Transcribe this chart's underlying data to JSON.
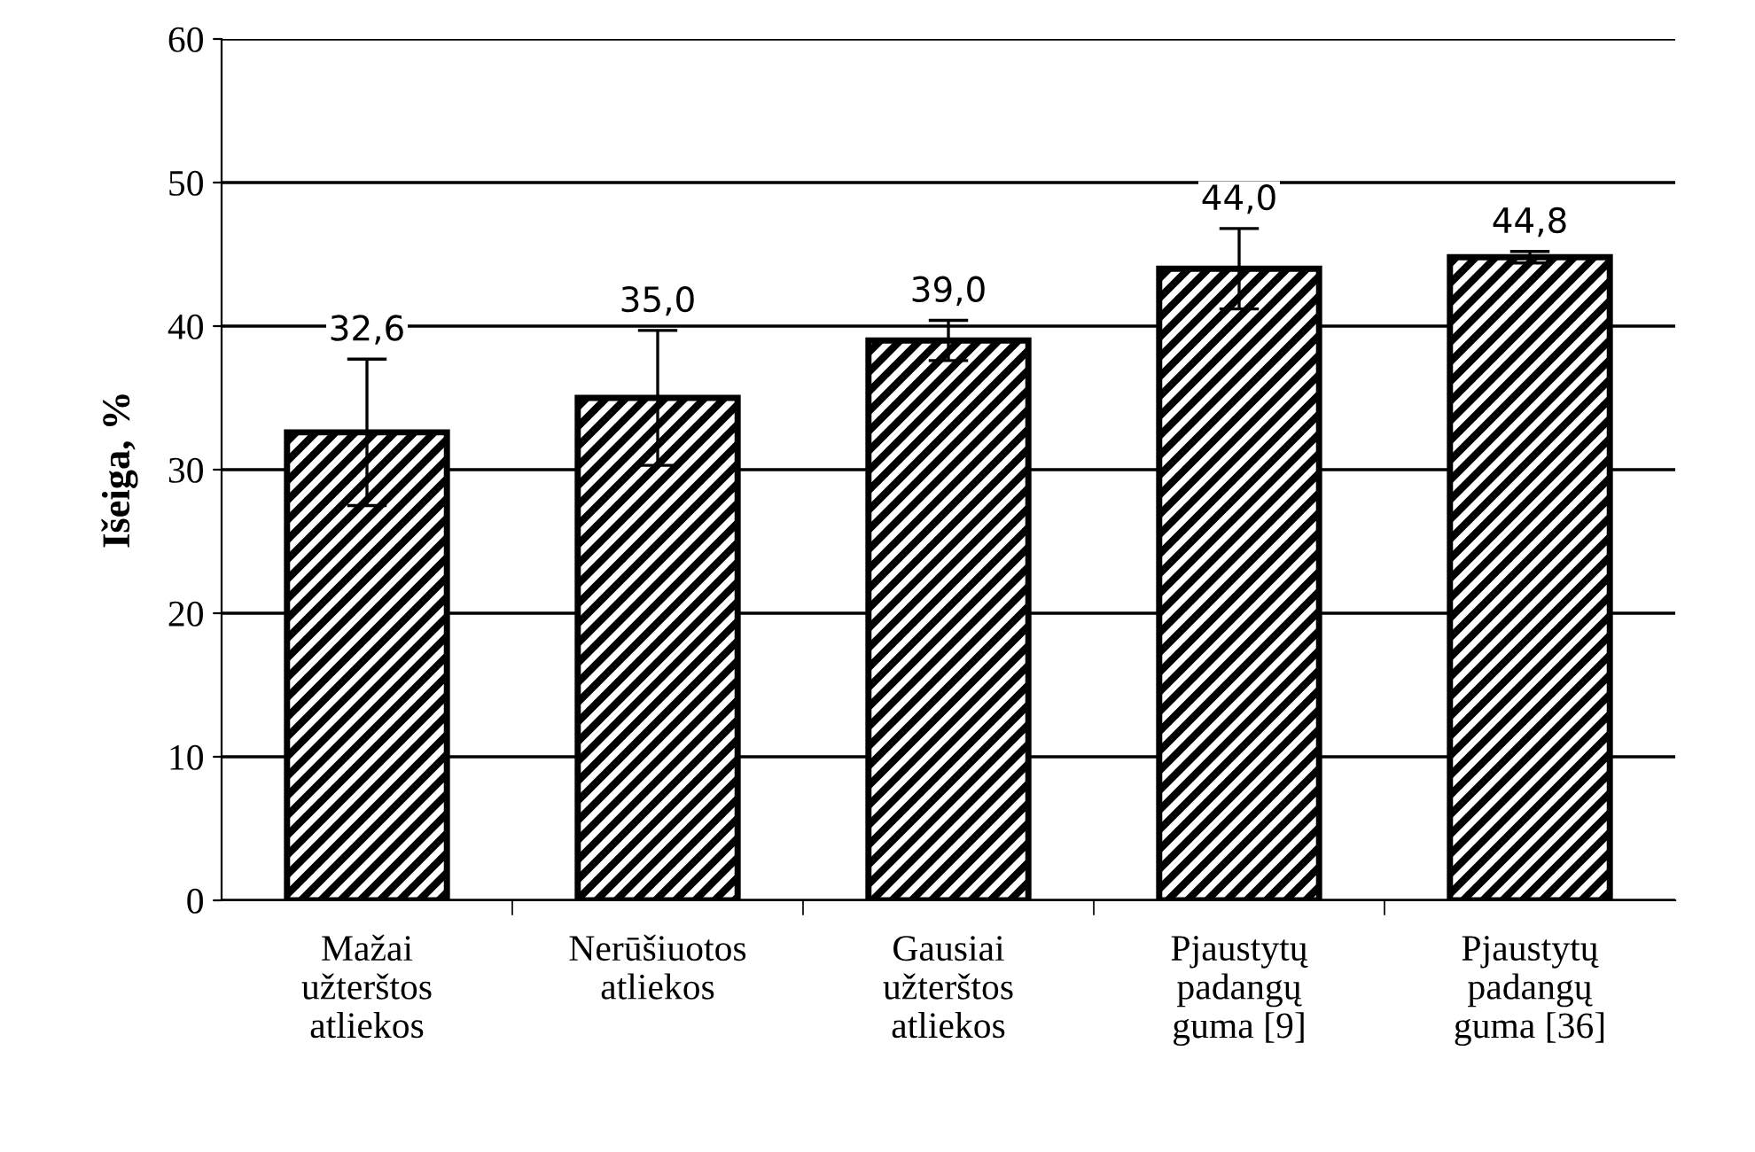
{
  "chart_data": {
    "type": "bar",
    "ylabel": "Išeiga, %",
    "categories": [
      "Mažai\nužterštos\natliekos",
      "Nerūšiuotos\natliekos",
      "Gausiai\nužterštos\natliekos",
      "Pjaustytų\npadangų\nguma [9]",
      "Pjaustytų\npadangų\nguma [36]"
    ],
    "values": [
      32.6,
      35.0,
      39.0,
      44.0,
      44.8
    ],
    "errors": [
      5.1,
      4.7,
      1.4,
      2.8,
      0.4
    ],
    "value_labels": [
      "32,6",
      "35,0",
      "39,0",
      "44,0",
      "44,8"
    ],
    "color": "#000000",
    "ylim": [
      0,
      60
    ],
    "yticks": [
      0,
      10,
      20,
      30,
      40,
      50,
      60
    ],
    "grid": "y"
  }
}
